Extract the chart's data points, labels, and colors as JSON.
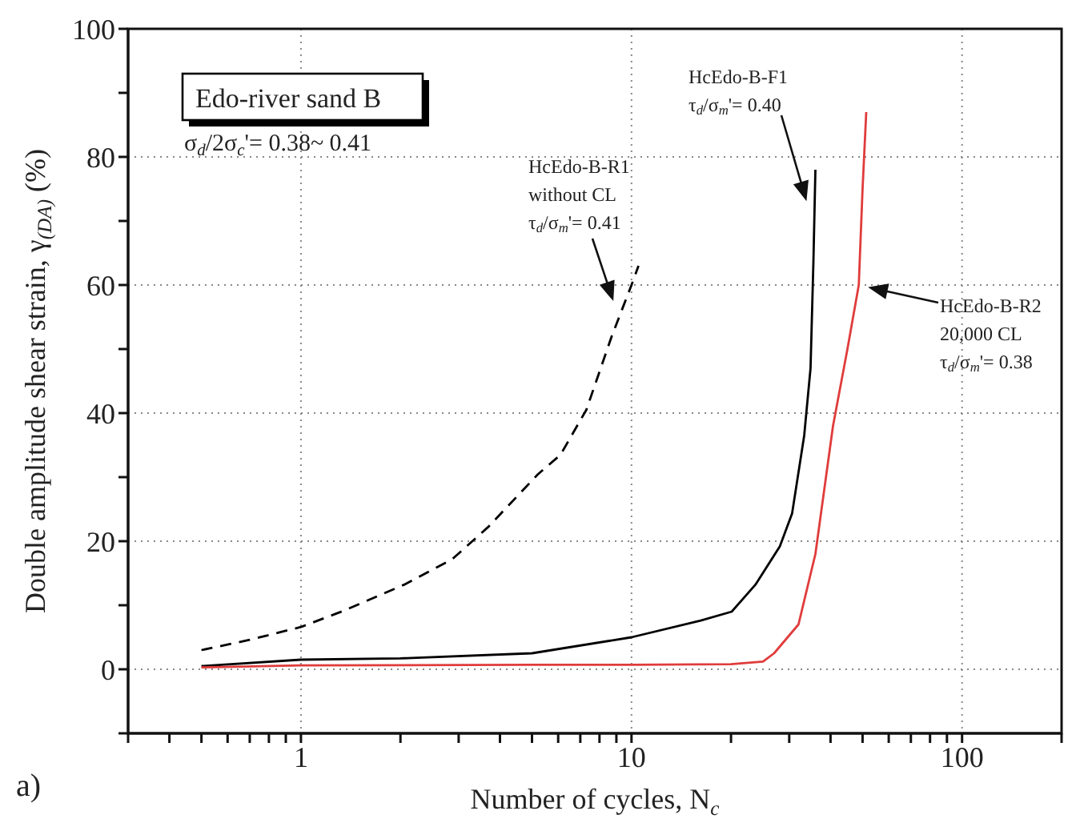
{
  "chart_data": {
    "type": "line",
    "xlabel": "Number of cycles, N$_{c}$",
    "ylabel": "Double amplitude shear strain, γ$_{(DA)}$ (%)",
    "series": [
      {
        "color": "#000000",
        "line_style": "dashed",
        "x": [
          0.5,
          0.7,
          1,
          1.34,
          2.05,
          2.87,
          3.7,
          5.2,
          6.1,
          7.3,
          8.7,
          10,
          10.5
        ],
        "values": [
          3,
          4.6,
          6.6,
          9.1,
          13.2,
          17.2,
          22.3,
          30.4,
          33.5,
          40.5,
          51.9,
          60,
          63
        ]
      },
      {
        "color": "#000000",
        "line_style": "solid",
        "x": [
          0.5,
          1,
          2,
          5,
          10,
          16.2,
          20.1,
          23.7,
          28.1,
          30.6,
          33.3,
          34.8,
          35.5,
          36
        ],
        "values": [
          0.5,
          1.5,
          1.7,
          2.5,
          5,
          7.6,
          9,
          13.2,
          19.2,
          24.3,
          36.5,
          47,
          63.5,
          78
        ]
      },
      {
        "color": "#e03c3c",
        "line_style": "solid",
        "x": [
          0.5,
          1,
          5,
          10,
          20,
          25,
          27,
          32,
          36,
          40.7,
          45,
          48.7,
          50,
          51.3
        ],
        "values": [
          0.3,
          0.6,
          0.7,
          0.7,
          0.8,
          1.2,
          2.5,
          7,
          18,
          38,
          50,
          60,
          75,
          87
        ]
      }
    ],
    "xlim": [
      0.3,
      200
    ],
    "log": "x",
    "xticks": [
      {
        "value": 0.3,
        "label": null
      },
      {
        "value": 0.4,
        "label": null
      },
      {
        "value": 0.5,
        "label": null
      },
      {
        "value": 0.6,
        "label": null
      },
      {
        "value": 0.7,
        "label": null
      },
      {
        "value": 0.8,
        "label": null
      },
      {
        "value": 0.9,
        "label": null
      },
      1,
      {
        "value": 2,
        "label": null
      },
      {
        "value": 3,
        "label": null
      },
      {
        "value": 4,
        "label": null
      },
      {
        "value": 5,
        "label": null
      },
      {
        "value": 6,
        "label": null
      },
      {
        "value": 7,
        "label": null
      },
      {
        "value": 8,
        "label": null
      },
      {
        "value": 9,
        "label": null
      },
      10,
      {
        "value": 20,
        "label": null
      },
      {
        "value": 30,
        "label": null
      },
      {
        "value": 40,
        "label": null
      },
      {
        "value": 50,
        "label": null
      },
      {
        "value": 60,
        "label": null
      },
      {
        "value": 70,
        "label": null
      },
      {
        "value": 80,
        "label": null
      },
      {
        "value": 90,
        "label": null
      },
      100,
      {
        "value": 200,
        "label": null
      }
    ],
    "ylim": [
      -10,
      100
    ],
    "yticks": [
      {
        "value": -10,
        "label": null
      },
      0,
      {
        "value": 10,
        "label": null
      },
      20,
      {
        "value": 30,
        "label": null
      },
      40,
      {
        "value": 50,
        "label": null
      },
      60,
      {
        "value": 70,
        "label": null
      },
      80,
      {
        "value": 90,
        "label": null
      },
      100
    ],
    "grid": true,
    "legend": false,
    "annotations": [
      "Edo-river sand B",
      "σ$_{d}$/2σ$_{c}$'= 0.38~ 0.41",
      "HcEdo-B-R1\nwithout CL\nτ$_{d}$/σ$_{m}$'= 0.41",
      "HcEdo-B-F1\nτ$_{d}$/σ$_{m}$'= 0.40",
      "HcEdo-B-R2\n20,000 CL\nτ$_{d}$/σ$_{m}$'= 0.38",
      "a)"
    ]
  }
}
